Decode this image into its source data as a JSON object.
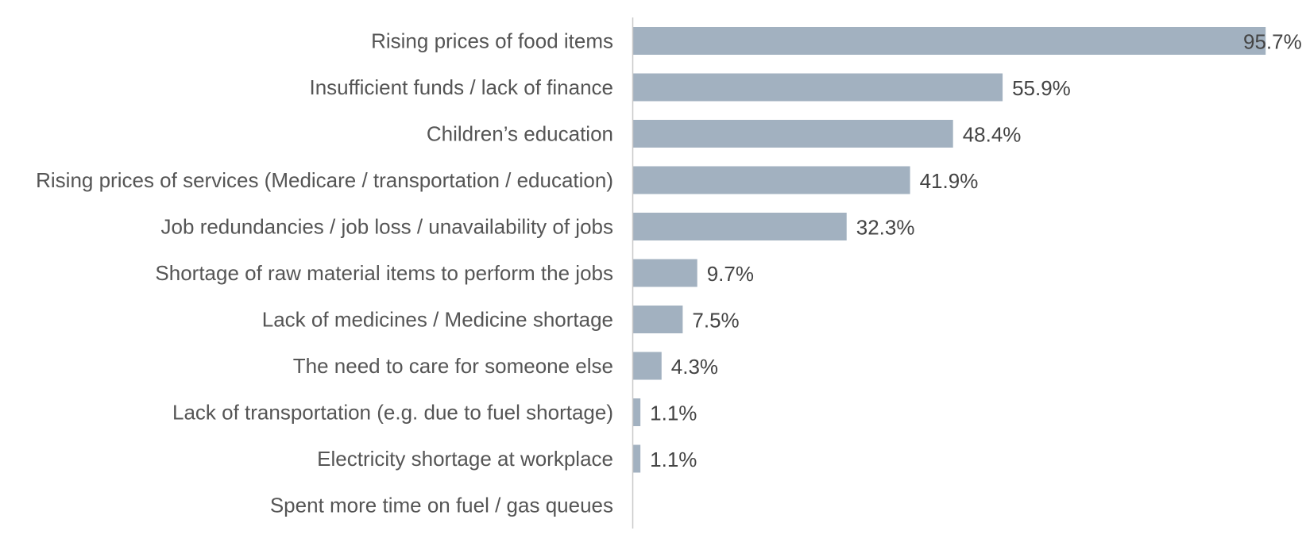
{
  "colors": {
    "bar": "#a2b1c0",
    "axis": "#c8c8c8",
    "category_text": "#555555",
    "value_text": "#444444",
    "background": "#ffffff"
  },
  "chart_data": {
    "type": "bar",
    "orientation": "horizontal",
    "title": "",
    "xlabel": "",
    "ylabel": "",
    "xlim": [
      0,
      100
    ],
    "grid": false,
    "legend": "none",
    "value_suffix": "%",
    "categories": [
      "Rising prices of food items",
      "Insufficient funds / lack of finance",
      "Children’s education",
      "Rising prices of services (Medicare / transportation / education)",
      "Job redundancies / job loss / unavailability of jobs",
      "Shortage of raw material items to perform the jobs",
      "Lack of medicines / Medicine shortage",
      "The need to care for someone else",
      "Lack of transportation (e.g. due to fuel shortage)",
      "Electricity shortage at workplace",
      "Spent more time on fuel / gas queues"
    ],
    "values": [
      95.7,
      55.9,
      48.4,
      41.9,
      32.3,
      9.7,
      7.5,
      4.3,
      1.1,
      1.1,
      null
    ],
    "value_labels": [
      "95.7%",
      "55.9%",
      "48.4%",
      "41.9%",
      "32.3%",
      "9.7%",
      "7.5%",
      "4.3%",
      "1.1%",
      "1.1%",
      ""
    ]
  }
}
